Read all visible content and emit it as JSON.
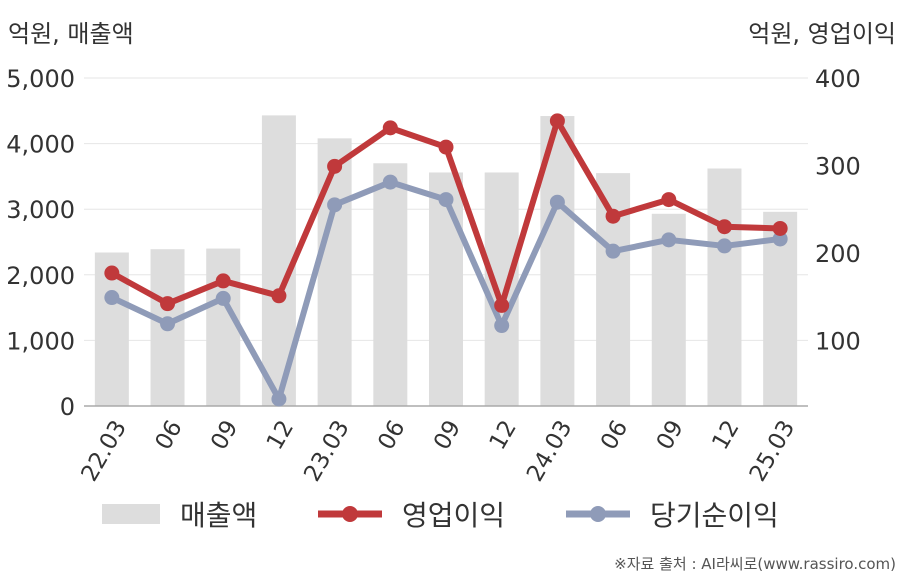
{
  "units": {
    "left": "억원, 매출액",
    "right": "억원, 영업이익"
  },
  "source": "※자료 출처 : AI라씨로(www.rassiro.com)",
  "colors": {
    "revenue": "#dddddd",
    "operating_profit": "#c0393b",
    "net_income": "#8f9bb8",
    "grid": "#e6e6e6",
    "axis": "#aaaaaa"
  },
  "chart_data": {
    "type": "bar",
    "categories": [
      "22.03",
      "06",
      "09",
      "12",
      "23.03",
      "06",
      "09",
      "12",
      "24.03",
      "06",
      "09",
      "12",
      "25.03"
    ],
    "y_left": {
      "min": 0,
      "max": 5000,
      "ticks": [
        "0",
        "1,000",
        "2,000",
        "3,000",
        "4,000",
        "5,000"
      ]
    },
    "y_right": {
      "min": 25,
      "max": 400,
      "ticks": [
        "100",
        "200",
        "300",
        "400"
      ]
    },
    "grid": true,
    "legend_position": "bottom",
    "series": [
      {
        "name": "매출액",
        "type": "bar",
        "axis": "left",
        "values": [
          2340,
          2390,
          2400,
          4430,
          4080,
          3700,
          3560,
          3560,
          4420,
          3550,
          2930,
          3620,
          2960
        ]
      },
      {
        "name": "영업이익",
        "type": "line",
        "axis": "right",
        "values": [
          177,
          142,
          168,
          151,
          299,
          343,
          321,
          140,
          351,
          242,
          261,
          230,
          228
        ]
      },
      {
        "name": "당기순이익",
        "type": "line",
        "axis": "right",
        "values": [
          149,
          119,
          148,
          33,
          255,
          281,
          261,
          117,
          258,
          202,
          215,
          208,
          216
        ]
      }
    ]
  }
}
